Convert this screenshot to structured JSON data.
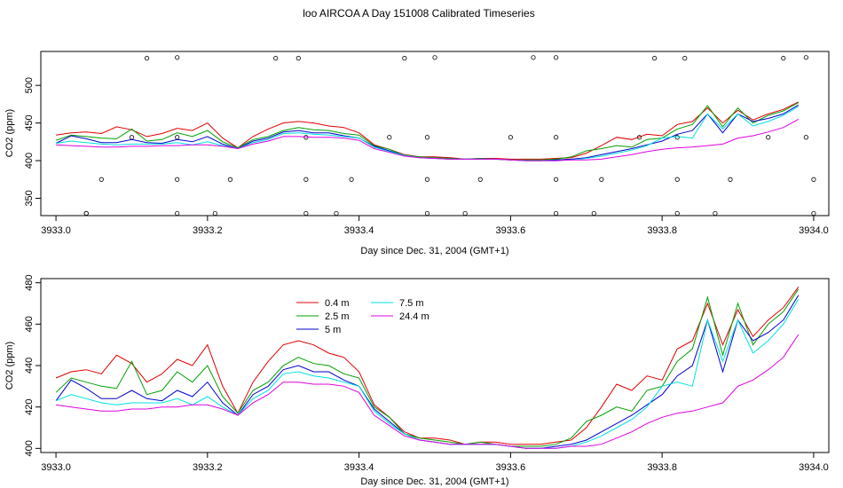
{
  "title": "loo AIRCOA A  Day 151008  Calibrated Timeseries",
  "colors": {
    "0.4 m": "#e00000",
    "2.5 m": "#00a000",
    "5 m": "#0000cc",
    "7.5 m": "#00e0e0",
    "24.4 m": "#e000e0"
  },
  "chart_data": [
    {
      "type": "line",
      "title": "",
      "xlabel": "Day since Dec. 31, 2004 (GMT+1)",
      "ylabel": "CO2 (ppm)",
      "xlim": [
        3932.98,
        3934.02
      ],
      "ylim": [
        327,
        545
      ],
      "xticks": [
        3933.0,
        3933.2,
        3933.4,
        3933.6,
        3933.8,
        3934.0
      ],
      "xtick_labels": [
        "3933.0",
        "3933.2",
        "3933.4",
        "3933.6",
        "3933.8",
        "3934.0"
      ],
      "yticks": [
        350,
        400,
        450,
        500
      ],
      "ytick_labels": [
        "350",
        "400",
        "450",
        "500"
      ],
      "legend": "none",
      "grid": false,
      "markers": {
        "label": "open circles",
        "x": [
          3933.04,
          3933.12,
          3933.16,
          3933.29,
          3933.32,
          3933.46,
          3933.5,
          3933.63,
          3933.66,
          3933.79,
          3933.83,
          3933.96,
          3933.99,
          3933.1,
          3933.16,
          3933.33,
          3933.44,
          3933.49,
          3933.6,
          3933.66,
          3933.77,
          3933.82,
          3933.94,
          3933.99,
          3933.06,
          3933.16,
          3933.23,
          3933.33,
          3933.39,
          3933.49,
          3933.56,
          3933.66,
          3933.72,
          3933.82,
          3933.89,
          3934.0,
          3933.04,
          3933.16,
          3933.21,
          3933.33,
          3933.37,
          3933.49,
          3933.54,
          3933.66,
          3933.71,
          3933.82,
          3933.87,
          3934.0
        ],
        "y": [
          330,
          536,
          537,
          536,
          536,
          536,
          537,
          537,
          537,
          536,
          536,
          536,
          537,
          431,
          431,
          431,
          431,
          431,
          431,
          431,
          431,
          431,
          431,
          431,
          375,
          375,
          375,
          375,
          375,
          375,
          375,
          375,
          375,
          375,
          375,
          375,
          330,
          330,
          330,
          330,
          330,
          330,
          330,
          330,
          330,
          330,
          330,
          330
        ]
      },
      "x": [
        3933.0,
        3933.02,
        3933.04,
        3933.06,
        3933.08,
        3933.1,
        3933.12,
        3933.14,
        3933.16,
        3933.18,
        3933.2,
        3933.22,
        3933.24,
        3933.26,
        3933.28,
        3933.3,
        3933.32,
        3933.34,
        3933.36,
        3933.38,
        3933.4,
        3933.42,
        3933.44,
        3933.46,
        3933.48,
        3933.5,
        3933.52,
        3933.54,
        3933.56,
        3933.58,
        3933.6,
        3933.62,
        3933.64,
        3933.66,
        3933.68,
        3933.7,
        3933.72,
        3933.74,
        3933.76,
        3933.78,
        3933.8,
        3933.82,
        3933.84,
        3933.86,
        3933.88,
        3933.9,
        3933.92,
        3933.94,
        3933.96,
        3933.98
      ],
      "series": [
        {
          "name": "0.4 m",
          "color": "#e00000",
          "values": [
            434,
            437,
            438,
            436,
            445,
            441,
            432,
            436,
            443,
            440,
            450,
            430,
            417,
            432,
            442,
            450,
            452,
            450,
            446,
            444,
            437,
            421,
            415,
            408,
            405,
            405,
            404,
            402,
            403,
            403,
            402,
            402,
            402,
            403,
            404,
            410,
            420,
            431,
            428,
            435,
            433,
            448,
            452,
            470,
            450,
            467,
            454,
            462,
            468,
            478
          ]
        },
        {
          "name": "2.5 m",
          "color": "#00a000",
          "values": [
            427,
            434,
            432,
            430,
            429,
            442,
            426,
            428,
            437,
            432,
            440,
            425,
            417,
            428,
            432,
            440,
            444,
            441,
            440,
            436,
            434,
            420,
            415,
            407,
            405,
            404,
            403,
            402,
            403,
            402,
            401,
            401,
            401,
            402,
            405,
            413,
            416,
            420,
            418,
            428,
            430,
            442,
            448,
            473,
            445,
            470,
            450,
            460,
            466,
            477
          ]
        },
        {
          "name": "5 m",
          "color": "#0000cc",
          "values": [
            423,
            433,
            429,
            424,
            424,
            428,
            424,
            423,
            428,
            425,
            432,
            422,
            416,
            426,
            430,
            438,
            440,
            437,
            437,
            433,
            430,
            419,
            413,
            407,
            404,
            403,
            402,
            402,
            402,
            402,
            401,
            400,
            400,
            401,
            402,
            404,
            408,
            412,
            416,
            421,
            426,
            435,
            440,
            462,
            437,
            462,
            452,
            456,
            462,
            474
          ]
        },
        {
          "name": "7.5 m",
          "color": "#00e0e0",
          "values": [
            423,
            426,
            424,
            422,
            421,
            422,
            422,
            422,
            424,
            421,
            425,
            420,
            416,
            424,
            428,
            436,
            437,
            435,
            434,
            432,
            430,
            418,
            412,
            407,
            404,
            403,
            402,
            402,
            402,
            402,
            401,
            400,
            400,
            400,
            401,
            403,
            406,
            410,
            414,
            420,
            430,
            432,
            430,
            462,
            442,
            462,
            446,
            452,
            460,
            472
          ]
        },
        {
          "name": "24.4 m",
          "color": "#e000e0",
          "values": [
            421,
            420,
            419,
            418,
            418,
            419,
            419,
            420,
            420,
            421,
            421,
            419,
            416,
            422,
            426,
            432,
            432,
            431,
            431,
            430,
            427,
            416,
            411,
            406,
            404,
            403,
            402,
            402,
            402,
            402,
            401,
            400,
            400,
            400,
            401,
            401,
            402,
            405,
            408,
            412,
            415,
            417,
            418,
            420,
            422,
            430,
            433,
            438,
            444,
            455
          ]
        }
      ]
    },
    {
      "type": "line",
      "title": "",
      "xlabel": "Day since Dec. 31, 2004 (GMT+1)",
      "ylabel": "CO2 (ppm)",
      "xlim": [
        3932.98,
        3934.02
      ],
      "ylim": [
        398,
        482
      ],
      "xticks": [
        3933.0,
        3933.2,
        3933.4,
        3933.6,
        3933.8,
        3934.0
      ],
      "xtick_labels": [
        "3933.0",
        "3933.2",
        "3933.4",
        "3933.6",
        "3933.8",
        "3934.0"
      ],
      "yticks": [
        400,
        420,
        440,
        460,
        480
      ],
      "ytick_labels": [
        "400",
        "420",
        "440",
        "460",
        "480"
      ],
      "legend": "top-left",
      "grid": false,
      "x": [
        3933.0,
        3933.02,
        3933.04,
        3933.06,
        3933.08,
        3933.1,
        3933.12,
        3933.14,
        3933.16,
        3933.18,
        3933.2,
        3933.22,
        3933.24,
        3933.26,
        3933.28,
        3933.3,
        3933.32,
        3933.34,
        3933.36,
        3933.38,
        3933.4,
        3933.42,
        3933.44,
        3933.46,
        3933.48,
        3933.5,
        3933.52,
        3933.54,
        3933.56,
        3933.58,
        3933.6,
        3933.62,
        3933.64,
        3933.66,
        3933.68,
        3933.7,
        3933.72,
        3933.74,
        3933.76,
        3933.78,
        3933.8,
        3933.82,
        3933.84,
        3933.86,
        3933.88,
        3933.9,
        3933.92,
        3933.94,
        3933.96,
        3933.98
      ],
      "series": [
        {
          "name": "0.4 m",
          "color": "#e00000",
          "values": [
            434,
            437,
            438,
            436,
            445,
            441,
            432,
            436,
            443,
            440,
            450,
            430,
            417,
            432,
            442,
            450,
            452,
            450,
            446,
            444,
            437,
            421,
            415,
            408,
            405,
            405,
            404,
            402,
            403,
            403,
            402,
            402,
            402,
            403,
            404,
            410,
            420,
            431,
            428,
            435,
            433,
            448,
            452,
            470,
            450,
            467,
            454,
            462,
            468,
            478
          ]
        },
        {
          "name": "2.5 m",
          "color": "#00a000",
          "values": [
            427,
            434,
            432,
            430,
            429,
            442,
            426,
            428,
            437,
            432,
            440,
            425,
            417,
            428,
            432,
            440,
            444,
            441,
            440,
            436,
            434,
            420,
            415,
            407,
            405,
            404,
            403,
            402,
            403,
            402,
            401,
            401,
            401,
            402,
            405,
            413,
            416,
            420,
            418,
            428,
            430,
            442,
            448,
            473,
            445,
            470,
            450,
            460,
            466,
            477
          ]
        },
        {
          "name": "5 m",
          "color": "#0000cc",
          "values": [
            423,
            433,
            429,
            424,
            424,
            428,
            424,
            423,
            428,
            425,
            432,
            422,
            416,
            426,
            430,
            438,
            440,
            437,
            437,
            433,
            430,
            419,
            413,
            407,
            404,
            403,
            402,
            402,
            402,
            402,
            401,
            400,
            400,
            401,
            402,
            404,
            408,
            412,
            416,
            421,
            426,
            435,
            440,
            462,
            437,
            462,
            452,
            456,
            462,
            474
          ]
        },
        {
          "name": "7.5 m",
          "color": "#00e0e0",
          "values": [
            423,
            426,
            424,
            422,
            421,
            422,
            422,
            422,
            424,
            421,
            425,
            420,
            416,
            424,
            428,
            436,
            437,
            435,
            434,
            432,
            430,
            418,
            412,
            407,
            404,
            403,
            402,
            402,
            402,
            402,
            401,
            400,
            400,
            400,
            401,
            403,
            406,
            410,
            414,
            420,
            430,
            432,
            430,
            462,
            442,
            462,
            446,
            452,
            460,
            472
          ]
        },
        {
          "name": "24.4 m",
          "color": "#e000e0",
          "values": [
            421,
            420,
            419,
            418,
            418,
            419,
            419,
            420,
            420,
            421,
            421,
            419,
            416,
            422,
            426,
            432,
            432,
            431,
            431,
            430,
            427,
            416,
            411,
            406,
            404,
            403,
            402,
            402,
            402,
            402,
            401,
            400,
            400,
            400,
            401,
            401,
            402,
            405,
            408,
            412,
            415,
            417,
            418,
            420,
            422,
            430,
            433,
            438,
            444,
            455
          ]
        }
      ]
    }
  ]
}
